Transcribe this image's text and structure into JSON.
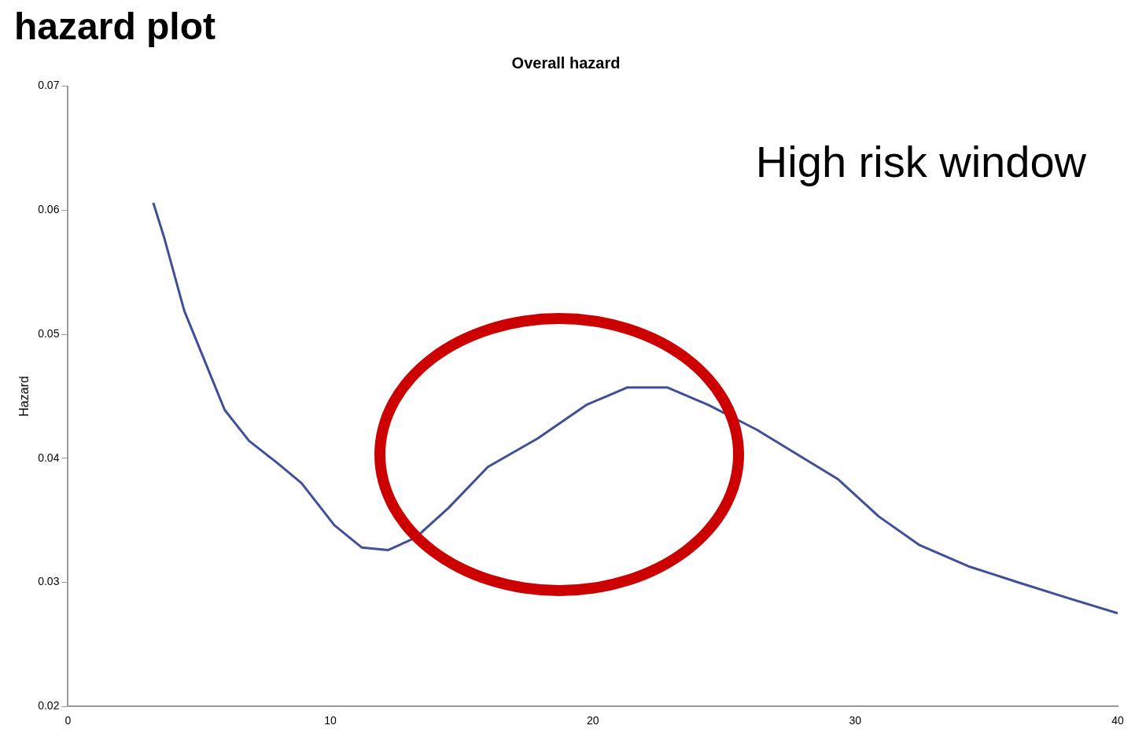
{
  "chart_data": {
    "type": "line",
    "title": "hazard plot",
    "subtitle": "Overall hazard",
    "ylabel": "Hazard",
    "annotations": [
      "High risk window"
    ],
    "x": [
      3.25,
      3.65,
      4.43,
      5.2,
      5.97,
      6.9,
      7.99,
      8.9,
      10.15,
      11.2,
      12.2,
      13.25,
      14.5,
      16.0,
      17.9,
      19.75,
      21.3,
      22.85,
      24.4,
      26.25,
      27.8,
      29.35,
      30.9,
      32.45,
      34.3,
      36.2,
      38.0,
      40
    ],
    "series": [
      {
        "color": "#3f4f9a",
        "values": [
          0.0606,
          0.0579,
          0.0519,
          0.0479,
          0.0439,
          0.0414,
          0.0396,
          0.038,
          0.0346,
          0.0328,
          0.0326,
          0.0336,
          0.036,
          0.0393,
          0.0416,
          0.0443,
          0.0457,
          0.0457,
          0.0443,
          0.0423,
          0.0403,
          0.0383,
          0.0353,
          0.033,
          0.0313,
          0.03,
          0.0288,
          0.0275
        ]
      }
    ],
    "xlim": [
      0,
      40
    ],
    "xticks": [
      0,
      10,
      20,
      30,
      40
    ],
    "ylim": [
      0.02,
      0.07
    ],
    "yticks": [
      0.02,
      0.03,
      0.04,
      0.05,
      0.06,
      0.07
    ],
    "grid": false,
    "legend": false,
    "marker": "none",
    "line_style": "solid"
  }
}
